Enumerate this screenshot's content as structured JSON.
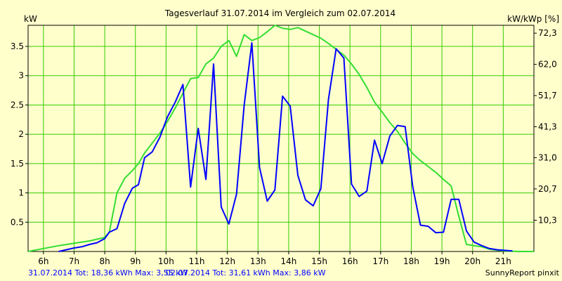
{
  "chart_data": {
    "type": "line",
    "title": "Tagesverlauf 31.07.2014 im Vergleich zum 02.07.2014",
    "ylabel_left": "kW",
    "ylabel_right": "kW/kWp [%]",
    "xlim": [
      5.5,
      22.0
    ],
    "ylim": [
      0,
      3.86
    ],
    "grid": true,
    "x_ticks": [
      6,
      7,
      8,
      9,
      10,
      11,
      12,
      13,
      14,
      15,
      16,
      17,
      18,
      19,
      20,
      21
    ],
    "x_tick_labels": [
      "6h",
      "7h",
      "8h",
      "9h",
      "10h",
      "11h",
      "12h",
      "13h",
      "14h",
      "15h",
      "16h",
      "17h",
      "18h",
      "19h",
      "20h",
      "21h"
    ],
    "y_ticks": [
      0.5,
      1,
      1.5,
      2,
      2.5,
      3,
      3.5
    ],
    "y_tick_labels": [
      "0.5",
      "1",
      "1.5",
      "2",
      "2.5",
      "3",
      "3.5"
    ],
    "y2_ticks": [
      0.534,
      1.068,
      1.6,
      2.129,
      2.661,
      3.194,
      3.726
    ],
    "y2_tick_labels": [
      "10,3",
      "20,7",
      "31,0",
      "41,3",
      "51,7",
      "62,0",
      "72,3"
    ],
    "colors": {
      "background": "#ffffcc",
      "grid": "#33cc00",
      "series1": "#0000ff",
      "series2": "#33dd33"
    },
    "series": [
      {
        "name": "31.07.2014",
        "color": "#0000ff",
        "points": [
          [
            6.5,
            0.0
          ],
          [
            7.0,
            0.06
          ],
          [
            7.25,
            0.08
          ],
          [
            7.5,
            0.12
          ],
          [
            7.75,
            0.15
          ],
          [
            8.0,
            0.22
          ],
          [
            8.15,
            0.33
          ],
          [
            8.4,
            0.39
          ],
          [
            8.65,
            0.82
          ],
          [
            8.9,
            1.08
          ],
          [
            9.1,
            1.14
          ],
          [
            9.3,
            1.6
          ],
          [
            9.55,
            1.7
          ],
          [
            9.8,
            1.95
          ],
          [
            10.05,
            2.3
          ],
          [
            10.3,
            2.55
          ],
          [
            10.55,
            2.85
          ],
          [
            10.8,
            1.1
          ],
          [
            11.05,
            2.1
          ],
          [
            11.3,
            1.23
          ],
          [
            11.55,
            3.2
          ],
          [
            11.8,
            0.76
          ],
          [
            12.05,
            0.47
          ],
          [
            12.3,
            0.98
          ],
          [
            12.55,
            2.5
          ],
          [
            12.8,
            3.56
          ],
          [
            13.05,
            1.43
          ],
          [
            13.3,
            0.86
          ],
          [
            13.55,
            1.05
          ],
          [
            13.8,
            2.65
          ],
          [
            14.05,
            2.48
          ],
          [
            14.3,
            1.3
          ],
          [
            14.55,
            0.88
          ],
          [
            14.8,
            0.78
          ],
          [
            15.05,
            1.07
          ],
          [
            15.3,
            2.6
          ],
          [
            15.55,
            3.46
          ],
          [
            15.8,
            3.3
          ],
          [
            16.05,
            1.15
          ],
          [
            16.3,
            0.94
          ],
          [
            16.55,
            1.03
          ],
          [
            16.8,
            1.9
          ],
          [
            17.05,
            1.5
          ],
          [
            17.3,
            1.97
          ],
          [
            17.55,
            2.15
          ],
          [
            17.8,
            2.13
          ],
          [
            18.05,
            1.1
          ],
          [
            18.3,
            0.45
          ],
          [
            18.55,
            0.43
          ],
          [
            18.8,
            0.32
          ],
          [
            19.05,
            0.33
          ],
          [
            19.3,
            0.89
          ],
          [
            19.55,
            0.89
          ],
          [
            19.8,
            0.35
          ],
          [
            20.05,
            0.16
          ],
          [
            20.3,
            0.1
          ],
          [
            20.55,
            0.05
          ],
          [
            20.8,
            0.03
          ],
          [
            21.3,
            0.01
          ]
        ]
      },
      {
        "name": "02.07.2014",
        "color": "#33dd33",
        "points": [
          [
            5.5,
            0.0
          ],
          [
            6.0,
            0.05
          ],
          [
            6.5,
            0.1
          ],
          [
            7.0,
            0.14
          ],
          [
            7.5,
            0.18
          ],
          [
            8.0,
            0.24
          ],
          [
            8.15,
            0.33
          ],
          [
            8.4,
            1.0
          ],
          [
            8.65,
            1.25
          ],
          [
            8.9,
            1.38
          ],
          [
            9.1,
            1.5
          ],
          [
            9.3,
            1.68
          ],
          [
            9.55,
            1.85
          ],
          [
            9.8,
            2.02
          ],
          [
            10.05,
            2.22
          ],
          [
            10.3,
            2.45
          ],
          [
            10.55,
            2.7
          ],
          [
            10.8,
            2.95
          ],
          [
            11.05,
            2.97
          ],
          [
            11.3,
            3.2
          ],
          [
            11.55,
            3.3
          ],
          [
            11.8,
            3.5
          ],
          [
            12.05,
            3.6
          ],
          [
            12.3,
            3.33
          ],
          [
            12.55,
            3.7
          ],
          [
            12.8,
            3.6
          ],
          [
            13.05,
            3.65
          ],
          [
            13.3,
            3.75
          ],
          [
            13.55,
            3.86
          ],
          [
            13.8,
            3.81
          ],
          [
            14.05,
            3.79
          ],
          [
            14.3,
            3.82
          ],
          [
            14.55,
            3.76
          ],
          [
            14.8,
            3.7
          ],
          [
            15.05,
            3.64
          ],
          [
            15.3,
            3.55
          ],
          [
            15.55,
            3.45
          ],
          [
            15.8,
            3.35
          ],
          [
            16.05,
            3.2
          ],
          [
            16.3,
            3.02
          ],
          [
            16.55,
            2.8
          ],
          [
            16.8,
            2.55
          ],
          [
            17.05,
            2.38
          ],
          [
            17.3,
            2.2
          ],
          [
            17.55,
            2.05
          ],
          [
            17.8,
            1.85
          ],
          [
            18.05,
            1.67
          ],
          [
            18.3,
            1.55
          ],
          [
            18.55,
            1.45
          ],
          [
            18.8,
            1.35
          ],
          [
            19.05,
            1.23
          ],
          [
            19.3,
            1.12
          ],
          [
            19.55,
            0.6
          ],
          [
            19.8,
            0.12
          ],
          [
            20.05,
            0.1
          ],
          [
            20.3,
            0.08
          ],
          [
            20.55,
            0.04
          ],
          [
            20.8,
            0.02
          ],
          [
            21.05,
            0.01
          ],
          [
            21.5,
            0.0
          ],
          [
            22.0,
            0.0
          ]
        ]
      }
    ]
  },
  "footer": {
    "series1_info": "31.07.2014 Tot: 18,36 kWh Max: 3,55 kW",
    "series2_info": "02.07.2014 Tot: 31,61 kWh Max: 3,86 kW",
    "credit": "SunnyReport pinxit"
  }
}
